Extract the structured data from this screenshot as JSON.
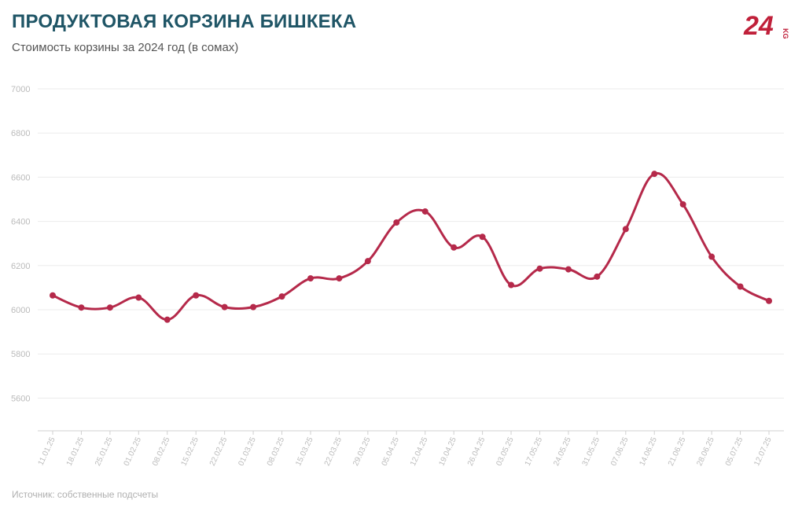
{
  "header": {
    "title": "ПРОДУКТОВАЯ КОРЗИНА БИШКЕКА",
    "subtitle": "Стоимость корзины за 2024 год (в сомах)"
  },
  "logo": {
    "number": "24",
    "suffix": "KG",
    "color": "#c0203a"
  },
  "footer": {
    "source": "Источник: собственные подсчеты"
  },
  "chart_data": {
    "type": "line",
    "title": "ПРОДУКТОВАЯ КОРЗИНА БИШКЕКА",
    "subtitle": "Стоимость корзины за 2024 год (в сомах)",
    "xlabel": "",
    "ylabel": "",
    "ylim": [
      5500,
      7000
    ],
    "yticks": [
      5600,
      5800,
      6000,
      6200,
      6400,
      6600,
      6800,
      7000
    ],
    "grid": true,
    "legend": "none",
    "line_color": "#b5294a",
    "categories": [
      "11.01.25",
      "18.01.25",
      "25.01.25",
      "01.02.25",
      "08.02.25",
      "15.02.25",
      "22.02.25",
      "01.03.25",
      "08.03.25",
      "15.03.25",
      "22.03.25",
      "29.03.25",
      "05.04.25",
      "12.04.25",
      "19.04.25",
      "26.04.25",
      "03.05.25",
      "17.05.25",
      "24.05.25",
      "31.05.25",
      "07.06.25",
      "14.06.25",
      "21.06.25",
      "28.06.25",
      "05.07.25",
      "12.07.25"
    ],
    "series": [
      {
        "values": [
          6065,
          6010,
          6010,
          6055,
          5955,
          6065,
          6012,
          6012,
          6060,
          6142,
          6142,
          6220,
          6395,
          6445,
          6282,
          6330,
          6112,
          6186,
          6183,
          6150,
          6365,
          6615,
          6477,
          6240,
          6105,
          6040
        ]
      }
    ]
  }
}
